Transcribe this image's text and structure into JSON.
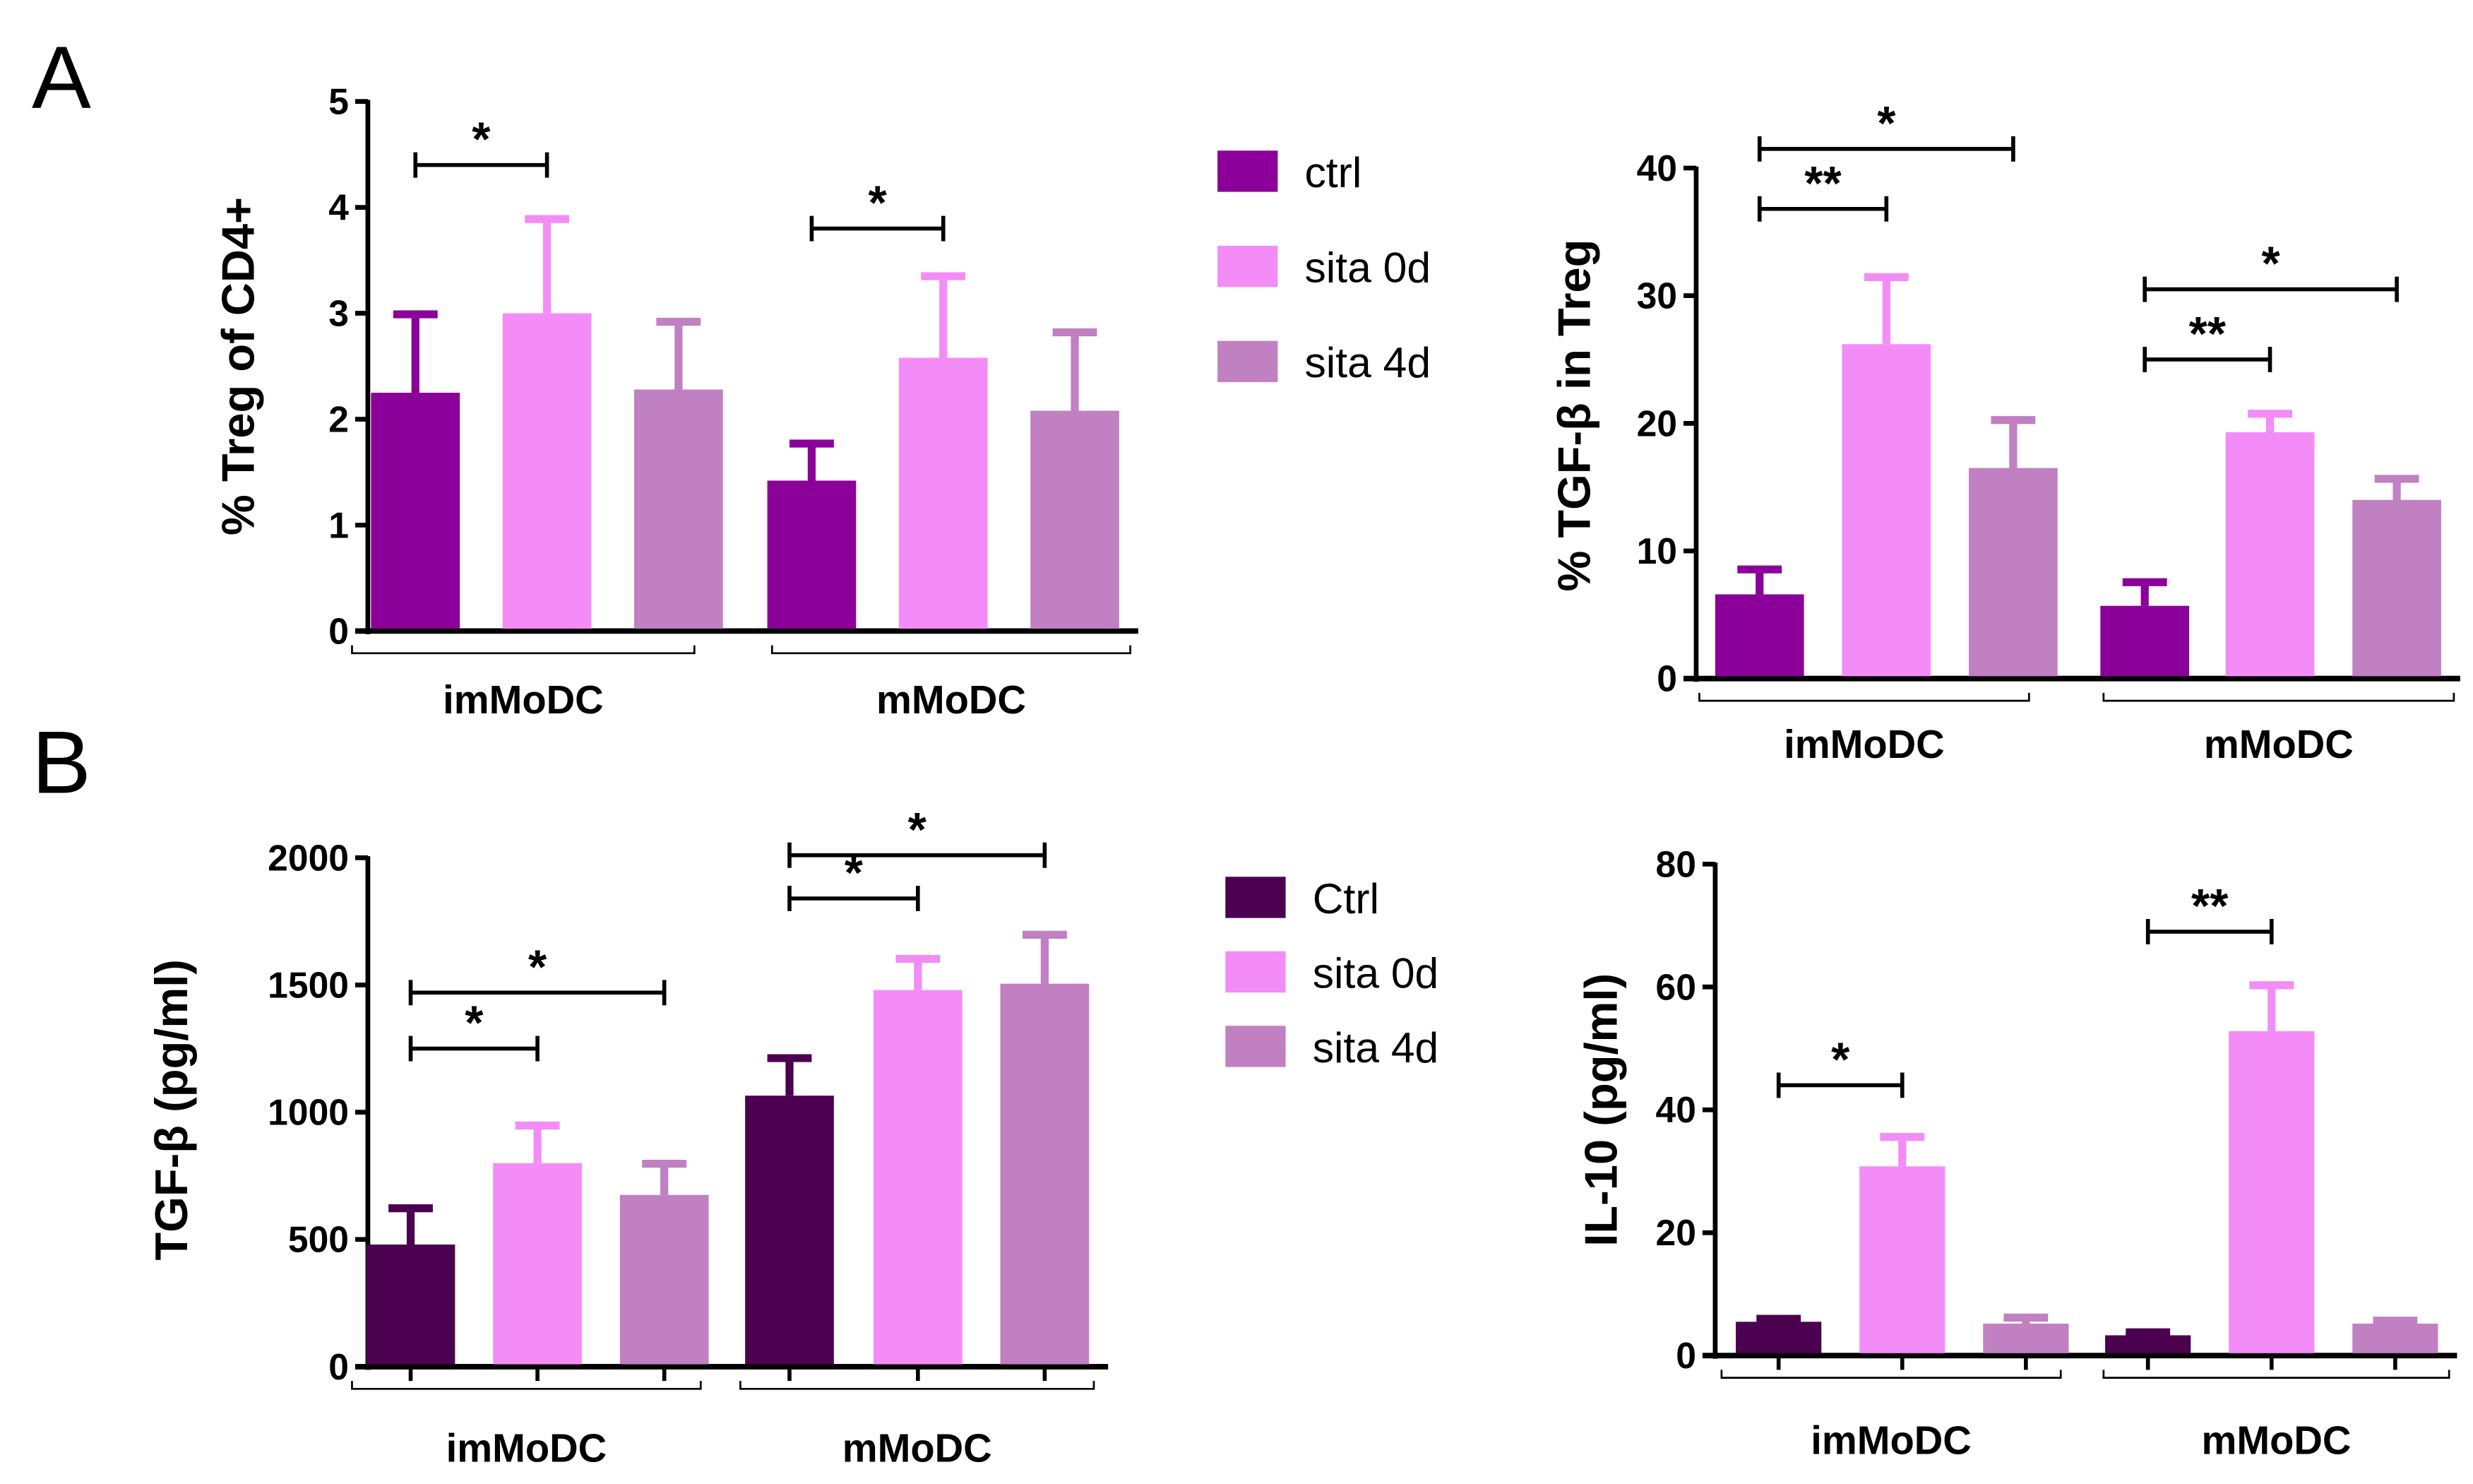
{
  "panel_labels": [
    "A",
    "B"
  ],
  "legends": [
    {
      "entries": [
        {
          "label": "ctrl",
          "color": "#8B0099"
        },
        {
          "label": "sita 0d",
          "color": "#F48CF8"
        },
        {
          "label": "sita 4d",
          "color": "#C080C2"
        }
      ]
    },
    {
      "entries": [
        {
          "label": "Ctrl",
          "color": "#4B0050"
        },
        {
          "label": "sita 0d",
          "color": "#F48CF8"
        },
        {
          "label": "sita 4d",
          "color": "#C080C2"
        }
      ]
    }
  ],
  "chart_data": [
    {
      "type": "bar",
      "panel": "A",
      "ylabel": "% Treg of CD4+",
      "ylim": [
        0,
        5
      ],
      "yticks": [
        "0",
        "1",
        "2",
        "3",
        "4",
        "5"
      ],
      "groups": [
        "imMoDC",
        "mMoDC"
      ],
      "series": [
        {
          "name": "ctrl",
          "color": "#8B0099",
          "values": [
            2.25,
            1.42
          ],
          "error": [
            0.77,
            0.38
          ]
        },
        {
          "name": "sita 0d",
          "color": "#F48CF8",
          "values": [
            3.0,
            2.58
          ],
          "error": [
            0.92,
            0.8
          ]
        },
        {
          "name": "sita 4d",
          "color": "#C080C2",
          "values": [
            2.28,
            2.08
          ],
          "error": [
            0.67,
            0.77
          ]
        }
      ],
      "significance": [
        {
          "from": 0,
          "to": 1,
          "y": 4.4,
          "label": "*"
        },
        {
          "from": 3,
          "to": 4,
          "y": 3.8,
          "label": "*"
        }
      ]
    },
    {
      "type": "bar",
      "panel": "A",
      "ylabel": "% TGF-β in Treg",
      "ylim": [
        0,
        40
      ],
      "yticks": [
        "0",
        "10",
        "20",
        "30",
        "40"
      ],
      "groups": [
        "imMoDC",
        "mMoDC"
      ],
      "series": [
        {
          "name": "ctrl",
          "color": "#8B0099",
          "values": [
            6.6,
            5.7
          ],
          "error": [
            2.2,
            2.1
          ]
        },
        {
          "name": "sita 0d",
          "color": "#F48CF8",
          "values": [
            26.2,
            19.3
          ],
          "error": [
            5.5,
            1.7
          ]
        },
        {
          "name": "sita 4d",
          "color": "#C080C2",
          "values": [
            16.5,
            14.0
          ],
          "error": [
            4.0,
            1.9
          ]
        }
      ],
      "significance": [
        {
          "from": 0,
          "to": 1,
          "y": 36.8,
          "label": "**"
        },
        {
          "from": 0,
          "to": 2,
          "y": 41.5,
          "label": "*"
        },
        {
          "from": 3,
          "to": 4,
          "y": 25.0,
          "label": "**"
        },
        {
          "from": 3,
          "to": 5,
          "y": 30.5,
          "label": "*"
        }
      ]
    },
    {
      "type": "bar",
      "panel": "B",
      "ylabel": "TGF-β (pg/ml)",
      "ylim": [
        0,
        2000
      ],
      "yticks": [
        "0",
        "500",
        "1000",
        "1500",
        "2000"
      ],
      "groups": [
        "imMoDC",
        "mMoDC"
      ],
      "series": [
        {
          "name": "Ctrl",
          "color": "#4B0050",
          "values": [
            480,
            1065
          ],
          "error": [
            155,
            160
          ]
        },
        {
          "name": "sita 0d",
          "color": "#F48CF8",
          "values": [
            800,
            1480
          ],
          "error": [
            160,
            135
          ]
        },
        {
          "name": "sita 4d",
          "color": "#C080C2",
          "values": [
            675,
            1505
          ],
          "error": [
            135,
            205
          ]
        }
      ],
      "significance": [
        {
          "from": 0,
          "to": 1,
          "y": 1250,
          "label": "*"
        },
        {
          "from": 0,
          "to": 2,
          "y": 1470,
          "label": "*"
        },
        {
          "from": 3,
          "to": 4,
          "y": 1840,
          "label": "*"
        },
        {
          "from": 3,
          "to": 5,
          "y": 2010,
          "label": "*"
        }
      ]
    },
    {
      "type": "bar",
      "panel": "B",
      "ylabel": "IL-10 (pg/ml)",
      "ylim": [
        0,
        80
      ],
      "yticks": [
        "0",
        "20",
        "40",
        "60",
        "80"
      ],
      "groups": [
        "imMoDC",
        "mMoDC"
      ],
      "series": [
        {
          "name": "Ctrl",
          "color": "#4B0050",
          "values": [
            5.5,
            3.3
          ],
          "error": [
            1.0,
            1.0
          ]
        },
        {
          "name": "sita 0d",
          "color": "#F48CF8",
          "values": [
            30.8,
            52.8
          ],
          "error": [
            5.3,
            8.0
          ]
        },
        {
          "name": "sita 4d",
          "color": "#C080C2",
          "values": [
            5.2,
            5.2
          ],
          "error": [
            1.5,
            1.0
          ]
        }
      ],
      "significance": [
        {
          "from": 0,
          "to": 1,
          "y": 44,
          "label": "*"
        },
        {
          "from": 3,
          "to": 4,
          "y": 69,
          "label": "**"
        }
      ]
    }
  ]
}
